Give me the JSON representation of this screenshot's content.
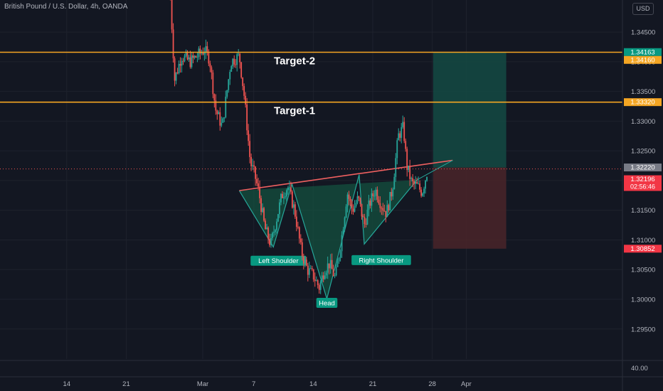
{
  "header": {
    "symbol_title": "British Pound / U.S. Dollar, 4h, OANDA",
    "currency": "USD"
  },
  "colors": {
    "background": "#131722",
    "grid": "#1e222d",
    "axis_text": "#b2b5be",
    "candle_up": "#26a69a",
    "candle_down": "#ef5350",
    "target_line": "#f5a623",
    "neckline": "#f06060",
    "pattern_fill": "#14503f",
    "pattern_stroke": "#26a69a",
    "profit_zone": "#144a43",
    "loss_zone": "#4a2529",
    "label_green": "#089981",
    "label_red": "#f23645",
    "label_gray": "#787b86"
  },
  "chart_data": {
    "type": "candlestick",
    "title": "British Pound / U.S. Dollar, 4h, OANDA",
    "y_range": [
      1.2915,
      1.3504
    ],
    "y_ticks": [
      "1.34500",
      "1.34000",
      "1.33500",
      "1.33000",
      "1.32500",
      "1.32000",
      "1.31500",
      "1.31000",
      "1.30500",
      "1.30000",
      "1.29500"
    ],
    "x_ticks": [
      {
        "label": "14",
        "day": -16
      },
      {
        "label": "21",
        "day": -9
      },
      {
        "label": "Mar",
        "day": 0
      },
      {
        "label": "7",
        "day": 6
      },
      {
        "label": "14",
        "day": 13
      },
      {
        "label": "21",
        "day": 20
      },
      {
        "label": "28",
        "day": 27
      },
      {
        "label": "Apr",
        "day": 31
      }
    ],
    "sub_pane_tick": "40.00",
    "anchors": [
      {
        "day": -3.8,
        "price": 1.3505
      },
      {
        "day": -3.3,
        "price": 1.337
      },
      {
        "day": -2.5,
        "price": 1.341
      },
      {
        "day": -1.5,
        "price": 1.34
      },
      {
        "day": 0.2,
        "price": 1.342
      },
      {
        "day": 0.8,
        "price": 1.3405
      },
      {
        "day": 1.5,
        "price": 1.332
      },
      {
        "day": 2.3,
        "price": 1.329
      },
      {
        "day": 3.3,
        "price": 1.34
      },
      {
        "day": 4.3,
        "price": 1.341
      },
      {
        "day": 4.9,
        "price": 1.334
      },
      {
        "day": 5.6,
        "price": 1.323
      },
      {
        "day": 6.1,
        "price": 1.321
      },
      {
        "day": 6.6,
        "price": 1.318
      },
      {
        "day": 7.3,
        "price": 1.312
      },
      {
        "day": 8.0,
        "price": 1.3092
      },
      {
        "day": 8.6,
        "price": 1.313
      },
      {
        "day": 9.3,
        "price": 1.3175
      },
      {
        "day": 10.0,
        "price": 1.319
      },
      {
        "day": 10.8,
        "price": 1.315
      },
      {
        "day": 11.6,
        "price": 1.308
      },
      {
        "day": 12.3,
        "price": 1.305
      },
      {
        "day": 13.0,
        "price": 1.304
      },
      {
        "day": 13.7,
        "price": 1.302
      },
      {
        "day": 14.3,
        "price": 1.305
      },
      {
        "day": 14.9,
        "price": 1.306
      },
      {
        "day": 15.6,
        "price": 1.3035
      },
      {
        "day": 16.3,
        "price": 1.31
      },
      {
        "day": 17.0,
        "price": 1.318
      },
      {
        "day": 17.6,
        "price": 1.315
      },
      {
        "day": 18.3,
        "price": 1.317
      },
      {
        "day": 19.0,
        "price": 1.3125
      },
      {
        "day": 19.6,
        "price": 1.316
      },
      {
        "day": 20.3,
        "price": 1.3185
      },
      {
        "day": 21.0,
        "price": 1.316
      },
      {
        "day": 21.6,
        "price": 1.3145
      },
      {
        "day": 22.3,
        "price": 1.3185
      },
      {
        "day": 23.0,
        "price": 1.3275
      },
      {
        "day": 23.6,
        "price": 1.329
      },
      {
        "day": 24.0,
        "price": 1.3225
      },
      {
        "day": 24.6,
        "price": 1.3195
      },
      {
        "day": 25.3,
        "price": 1.319
      },
      {
        "day": 25.8,
        "price": 1.318
      },
      {
        "day": 26.4,
        "price": 1.3215
      }
    ],
    "price_labels": [
      {
        "value": 1.34163,
        "text": "1.34163",
        "color": "#089981"
      },
      {
        "value": 1.3416,
        "text": "1.34160",
        "color": "#f5a623"
      },
      {
        "value": 1.3332,
        "text": "1.33320",
        "color": "#f5a623"
      },
      {
        "value": 1.3222,
        "text": "1.32220",
        "color": "#787b86"
      },
      {
        "value": 1.32196,
        "text": "1.32196",
        "color": "#f23645",
        "countdown": "02:56:46"
      },
      {
        "value": 1.30852,
        "text": "1.30852",
        "color": "#f23645"
      }
    ],
    "horizontal_lines": [
      {
        "price": 1.3416,
        "label": "Target-2"
      },
      {
        "price": 1.3332,
        "label": "Target-1"
      }
    ],
    "current_price": 1.32196,
    "pattern": {
      "name": "Inverse Head and Shoulders",
      "points": [
        {
          "day": 4.3,
          "price": 1.3183
        },
        {
          "day": 8.3,
          "price": 1.3088
        },
        {
          "day": 10.5,
          "price": 1.3194
        },
        {
          "day": 14.6,
          "price": 1.3001
        },
        {
          "day": 18.4,
          "price": 1.321
        },
        {
          "day": 19.0,
          "price": 1.3093
        },
        {
          "day": 25.2,
          "price": 1.3201
        }
      ],
      "labels": {
        "left_shoulder": "Left Shoulder",
        "head": "Head",
        "right_shoulder": "Right Shoulder"
      },
      "neckline": [
        {
          "day": 4.3,
          "price": 1.3183
        },
        {
          "day": 29.4,
          "price": 1.3234
        }
      ]
    },
    "trade_position": {
      "type": "long",
      "start_day": 27.1,
      "end_day": 35.7,
      "entry": 1.3222,
      "target": 1.3416,
      "stop": 1.30852
    }
  }
}
